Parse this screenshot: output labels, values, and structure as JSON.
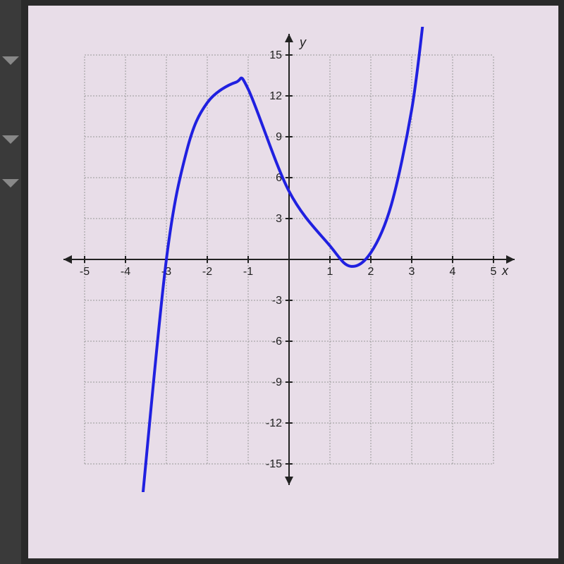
{
  "chart": {
    "type": "line",
    "title": "",
    "x_axis": {
      "label": "x",
      "min": -5,
      "max": 5,
      "tick_step": 1,
      "tick_labels": [
        "-5",
        "-4",
        "-3",
        "-2",
        "-1",
        "1",
        "2",
        "3",
        "4",
        "5"
      ],
      "tick_positions": [
        -5,
        -4,
        -3,
        -2,
        -1,
        1,
        2,
        3,
        4,
        5
      ]
    },
    "y_axis": {
      "label": "y",
      "min": -15,
      "max": 15,
      "tick_step": 3,
      "tick_labels": [
        "-15",
        "-12",
        "-9",
        "-6",
        "-3",
        "3",
        "6",
        "9",
        "12",
        "15"
      ],
      "tick_positions": [
        -15,
        -12,
        -9,
        -6,
        -3,
        3,
        6,
        9,
        12,
        15
      ]
    },
    "grid": {
      "visible": true,
      "color": "#999999",
      "style": "dashed",
      "x_range": [
        -5,
        5
      ],
      "y_range": [
        -15,
        15
      ]
    },
    "background_color": "#e8dde8",
    "axis_color": "#222222",
    "curve": {
      "color": "#2020e0",
      "width": 4,
      "type": "cubic_polynomial",
      "description": "cubic function with local max at approximately (-1.3, 13), local min at approximately (1.5, -0.5), x-intercepts near -3, 1.3, 1.8, y-intercept at 5",
      "key_points": [
        {
          "x": -3.6,
          "y": -18
        },
        {
          "x": -3,
          "y": 0
        },
        {
          "x": -2.5,
          "y": 8
        },
        {
          "x": -2,
          "y": 11.5
        },
        {
          "x": -1.3,
          "y": 13
        },
        {
          "x": -1,
          "y": 12.5
        },
        {
          "x": 0,
          "y": 5
        },
        {
          "x": 1,
          "y": 1
        },
        {
          "x": 1.5,
          "y": -0.5
        },
        {
          "x": 2,
          "y": 0.5
        },
        {
          "x": 2.5,
          "y": 4
        },
        {
          "x": 3,
          "y": 11
        },
        {
          "x": 3.3,
          "y": 18
        }
      ]
    },
    "label_fontsize": 18,
    "tick_fontsize": 16
  }
}
